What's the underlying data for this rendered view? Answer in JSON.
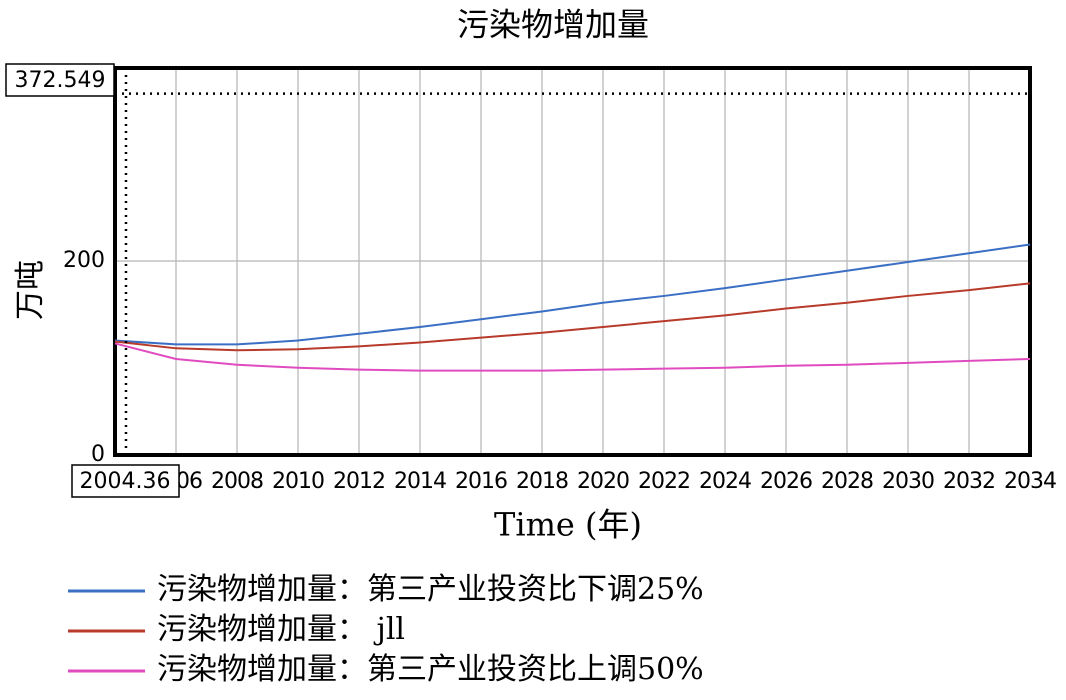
{
  "chart_data": {
    "type": "line",
    "title": "污染物增加量",
    "y_label": "万吨",
    "x_label": "Time (年)",
    "x": [
      2004,
      2006,
      2008,
      2010,
      2012,
      2014,
      2016,
      2018,
      2020,
      2022,
      2024,
      2026,
      2028,
      2030,
      2032,
      2034
    ],
    "series": [
      {
        "name": "污染物增加量：第三产业投资比下调25%",
        "color": "#3a6fc4",
        "values": [
          118,
          114,
          114,
          118,
          125,
          132,
          140,
          148,
          157,
          164,
          172,
          181,
          190,
          199,
          208,
          217
        ]
      },
      {
        "name": "污染物增加量： jll",
        "color": "#b83a2a",
        "values": [
          117,
          110,
          108,
          109,
          112,
          116,
          121,
          126,
          132,
          138,
          144,
          151,
          157,
          164,
          170,
          177
        ]
      },
      {
        "name": "污染物增加量：第三产业投资比上调50%",
        "color": "#e04bc0",
        "values": [
          115,
          99,
          93,
          90,
          88,
          87,
          87,
          87,
          88,
          89,
          90,
          92,
          93,
          95,
          97,
          99
        ]
      }
    ],
    "xlim": [
      2004,
      2034
    ],
    "xticks": [
      2006,
      2008,
      2010,
      2012,
      2014,
      2016,
      2018,
      2020,
      2022,
      2024,
      2026,
      2028,
      2030,
      2032,
      2034
    ],
    "ylim": [
      0,
      399
    ],
    "yticks": [
      0,
      200
    ],
    "grid": true,
    "cursor": {
      "x": 2004.36,
      "y": 372.549
    }
  }
}
